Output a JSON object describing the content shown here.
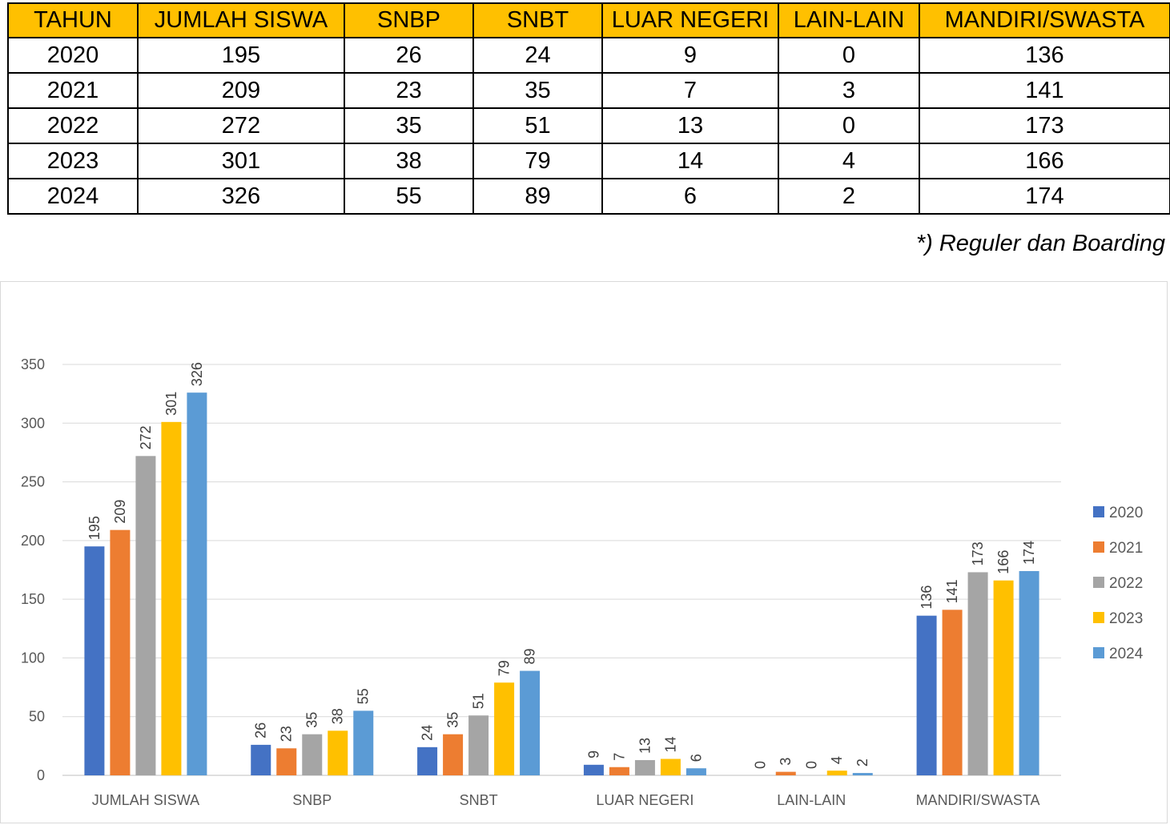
{
  "table": {
    "headers": [
      "TAHUN",
      "JUMLAH SISWA",
      "SNBP",
      "SNBT",
      "LUAR NEGERI",
      "LAIN-LAIN",
      "MANDIRI/SWASTA"
    ],
    "rows": [
      [
        "2020",
        "195",
        "26",
        "24",
        "9",
        "0",
        "136"
      ],
      [
        "2021",
        "209",
        "23",
        "35",
        "7",
        "3",
        "141"
      ],
      [
        "2022",
        "272",
        "35",
        "51",
        "13",
        "0",
        "173"
      ],
      [
        "2023",
        "301",
        "38",
        "79",
        "14",
        "4",
        "166"
      ],
      [
        "2024",
        "326",
        "55",
        "89",
        "6",
        "2",
        "174"
      ]
    ]
  },
  "footnote": "*) Reguler dan Boarding",
  "chart_data": {
    "type": "bar",
    "title": "",
    "xlabel": "",
    "ylabel": "",
    "ylim": [
      0,
      350
    ],
    "yticks": [
      0,
      50,
      100,
      150,
      200,
      250,
      300,
      350
    ],
    "grid": true,
    "legend_position": "right",
    "data_labels": true,
    "categories": [
      "JUMLAH SISWA",
      "SNBP",
      "SNBT",
      "LUAR NEGERI",
      "LAIN-LAIN",
      "MANDIRI/SWASTA"
    ],
    "series": [
      {
        "name": "2020",
        "color": "#4472c4",
        "values": [
          195,
          26,
          24,
          9,
          0,
          136
        ]
      },
      {
        "name": "2021",
        "color": "#ed7d31",
        "values": [
          209,
          23,
          35,
          7,
          3,
          141
        ]
      },
      {
        "name": "2022",
        "color": "#a5a5a5",
        "values": [
          272,
          35,
          51,
          13,
          0,
          173
        ]
      },
      {
        "name": "2023",
        "color": "#ffc000",
        "values": [
          301,
          38,
          79,
          14,
          4,
          166
        ]
      },
      {
        "name": "2024",
        "color": "#5b9bd5",
        "values": [
          326,
          55,
          89,
          6,
          2,
          174
        ]
      }
    ]
  }
}
